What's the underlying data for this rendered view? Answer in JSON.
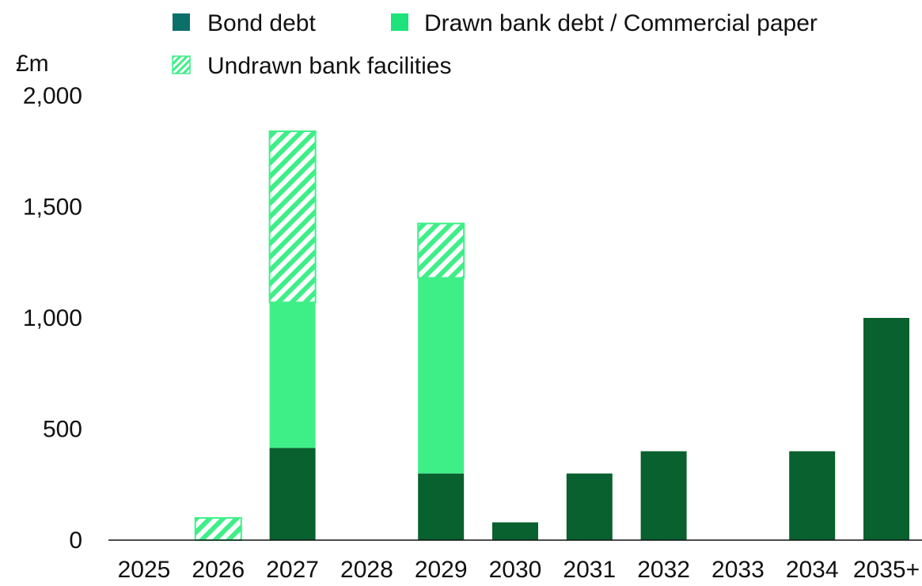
{
  "chart_data": {
    "type": "bar",
    "stacked": true,
    "title": "",
    "xlabel": "",
    "ylabel": "£m",
    "ylim": [
      0,
      2000
    ],
    "yticks": [
      "0",
      "500",
      "1,000",
      "1,500",
      "2,000"
    ],
    "ytick_values": [
      0,
      500,
      1000,
      1500,
      2000
    ],
    "grid": false,
    "legend_placement": "top",
    "categories": [
      "2025",
      "2026",
      "2027",
      "2028",
      "2029",
      "2030",
      "2031",
      "2032",
      "2033",
      "2034",
      "2035+"
    ],
    "series": [
      {
        "name": "Bond debt",
        "color": "#08612e",
        "pattern": "solid",
        "values": [
          0,
          0,
          415,
          0,
          300,
          80,
          300,
          400,
          0,
          400,
          1000
        ]
      },
      {
        "name": "Drawn bank debt / Commercial paper",
        "color": "#3eef88",
        "pattern": "solid",
        "values": [
          0,
          0,
          655,
          0,
          880,
          0,
          0,
          0,
          0,
          0,
          0
        ]
      },
      {
        "name": "Undrawn bank facilities",
        "color": "#3eef88",
        "pattern": "hatched",
        "values": [
          0,
          100,
          770,
          0,
          245,
          0,
          0,
          0,
          0,
          0,
          0
        ]
      }
    ],
    "legend_swatch_colors": [
      "#0b6f6a",
      "#1ee37a",
      "#3eef88"
    ]
  }
}
